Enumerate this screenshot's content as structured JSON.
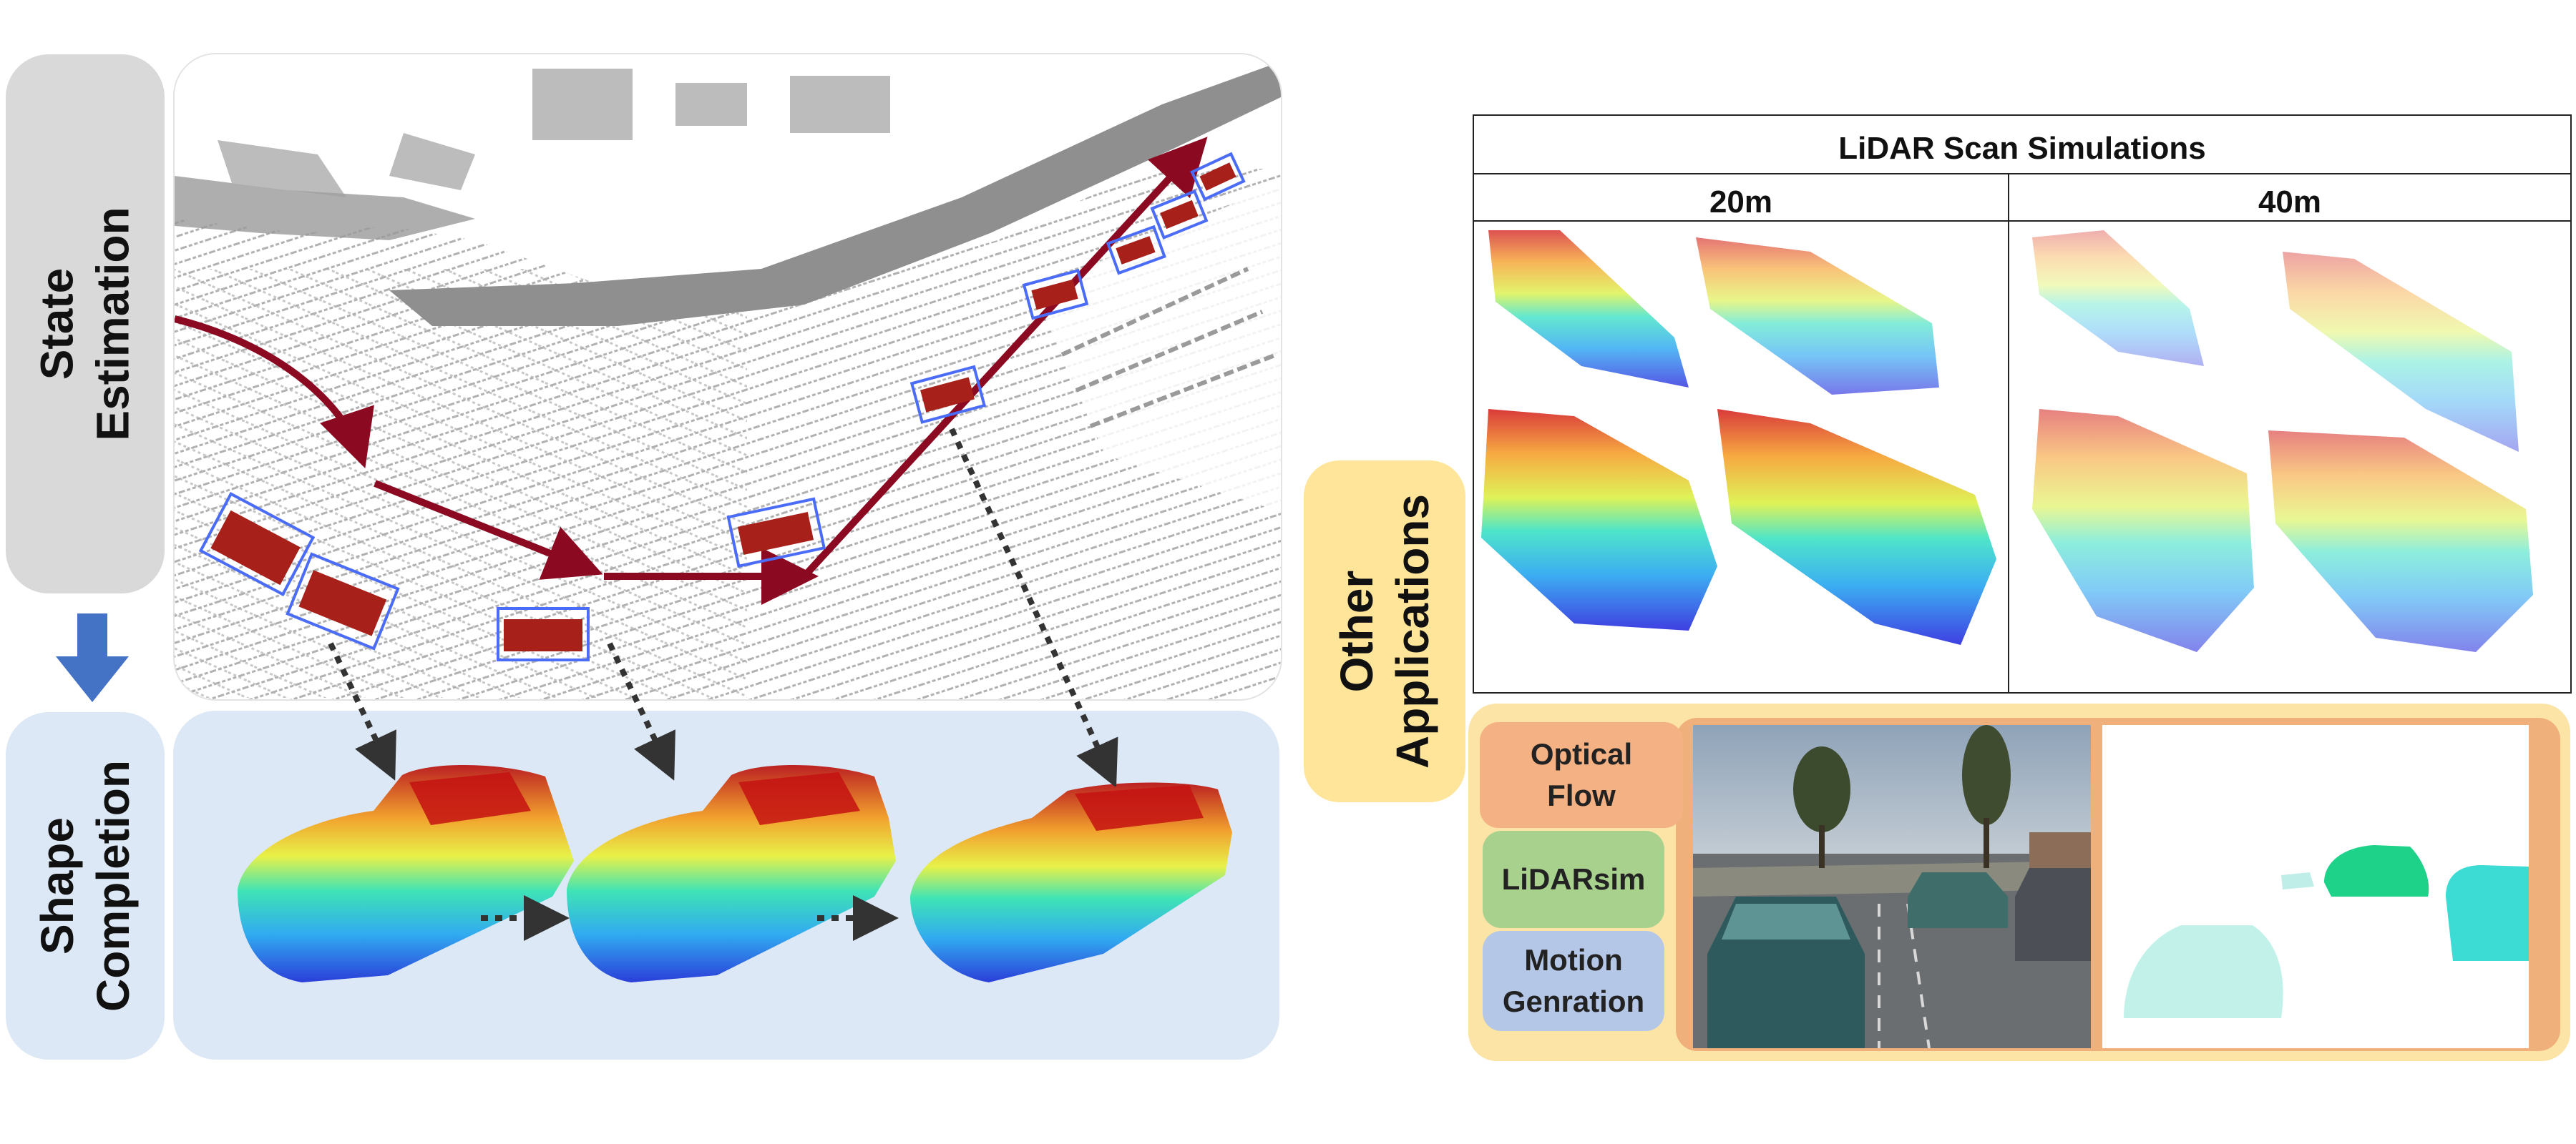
{
  "left": {
    "state_label": "State\nEstimation",
    "shape_label": "Shape\nCompletion"
  },
  "right": {
    "other_label": "Other\nApplications",
    "table": {
      "title": "LiDAR Scan Simulations",
      "columns": [
        "20m",
        "40m"
      ]
    },
    "applications": [
      {
        "label": "Optical\nFlow",
        "color": "#f4b183"
      },
      {
        "label": "LiDARsim",
        "color": "#a9d18e"
      },
      {
        "label": "Motion\nGenration",
        "color": "#b4c7e7"
      }
    ]
  },
  "colors": {
    "state_pill": "#d9d9d9",
    "shape_panel": "#dce8f5",
    "other_pill": "#ffe59a",
    "apps_panel": "#fce4a6",
    "apps_inner": "#f0b07c",
    "trajectory": "#8b0a22",
    "down_arrow": "#4472c4",
    "box_blue": "#4a6cf7"
  }
}
